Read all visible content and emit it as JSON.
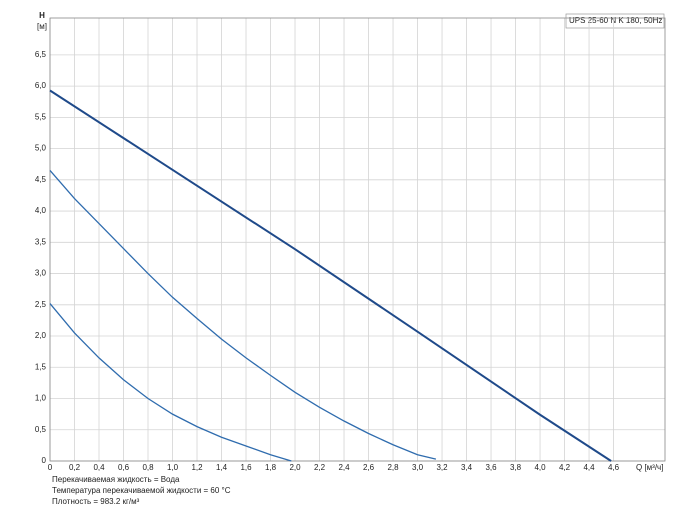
{
  "chart_data": {
    "type": "line",
    "y_label_top": "H",
    "y_unit": "[м]",
    "x_label": "Q [м³/ч]",
    "legend_box": "UPS 25-60 N K 180, 50Hz",
    "notes": [
      "Перекачиваемая жидкость = Вода",
      "Температура перекачиваемой жидкости = 60 °C",
      "Плотность = 983.2 кг/м³"
    ],
    "xlim": [
      0,
      5.02
    ],
    "ylim": [
      0,
      7.09
    ],
    "grid": true,
    "xticks": [
      0,
      {
        "value": 0.2,
        "label": "0,2"
      },
      {
        "value": 0.4,
        "label": "0,4"
      },
      {
        "value": 0.6,
        "label": "0,6"
      },
      {
        "value": 0.8,
        "label": "0,8"
      },
      {
        "value": 1.0,
        "label": "1,0"
      },
      {
        "value": 1.2,
        "label": "1,2"
      },
      {
        "value": 1.4,
        "label": "1,4"
      },
      {
        "value": 1.6,
        "label": "1,6"
      },
      {
        "value": 1.8,
        "label": "1,8"
      },
      {
        "value": 2.0,
        "label": "2,0"
      },
      {
        "value": 2.2,
        "label": "2,2"
      },
      {
        "value": 2.4,
        "label": "2,4"
      },
      {
        "value": 2.6,
        "label": "2,6"
      },
      {
        "value": 2.8,
        "label": "2,8"
      },
      {
        "value": 3.0,
        "label": "3,0"
      },
      {
        "value": 3.2,
        "label": "3,2"
      },
      {
        "value": 3.4,
        "label": "3,4"
      },
      {
        "value": 3.6,
        "label": "3,6"
      },
      {
        "value": 3.8,
        "label": "3,8"
      },
      {
        "value": 4.0,
        "label": "4,0"
      },
      {
        "value": 4.2,
        "label": "4,2"
      },
      {
        "value": 4.4,
        "label": "4,4"
      },
      {
        "value": 4.6,
        "label": "4,6"
      }
    ],
    "yticks": [
      0,
      {
        "value": 0.5,
        "label": "0,5"
      },
      {
        "value": 1.0,
        "label": "1,0"
      },
      {
        "value": 1.5,
        "label": "1,5"
      },
      {
        "value": 2.0,
        "label": "2,0"
      },
      {
        "value": 2.5,
        "label": "2,5"
      },
      {
        "value": 3.0,
        "label": "3,0"
      },
      {
        "value": 3.5,
        "label": "3,5"
      },
      {
        "value": 4.0,
        "label": "4,0"
      },
      {
        "value": 4.5,
        "label": "4,5"
      },
      {
        "value": 5.0,
        "label": "5,0"
      },
      {
        "value": 5.5,
        "label": "5,5"
      },
      {
        "value": 6.0,
        "label": "6,0"
      },
      {
        "value": 6.5,
        "label": "6,5"
      }
    ],
    "series": [
      {
        "color": "#1f4a8a",
        "width": 2,
        "x": [
          0,
          1.0,
          2.0,
          3.0,
          4.0,
          4.58
        ],
        "values": [
          5.93,
          4.66,
          3.39,
          2.07,
          0.74,
          0
        ]
      },
      {
        "color": "#2f6cae",
        "width": 1.3,
        "x": [
          0,
          0.2,
          0.4,
          0.6,
          0.8,
          1.0,
          1.2,
          1.4,
          1.6,
          1.8,
          2.0,
          2.2,
          2.4,
          2.6,
          2.8,
          3.0,
          3.15
        ],
        "values": [
          4.65,
          4.2,
          3.8,
          3.4,
          3.0,
          2.62,
          2.28,
          1.95,
          1.65,
          1.37,
          1.1,
          0.86,
          0.64,
          0.44,
          0.26,
          0.1,
          0.03
        ]
      },
      {
        "color": "#2f6cae",
        "width": 1.3,
        "x": [
          0,
          0.2,
          0.4,
          0.6,
          0.8,
          1.0,
          1.2,
          1.4,
          1.6,
          1.8,
          1.97
        ],
        "values": [
          2.52,
          2.05,
          1.65,
          1.3,
          1.0,
          0.75,
          0.55,
          0.38,
          0.24,
          0.1,
          0
        ]
      }
    ]
  }
}
